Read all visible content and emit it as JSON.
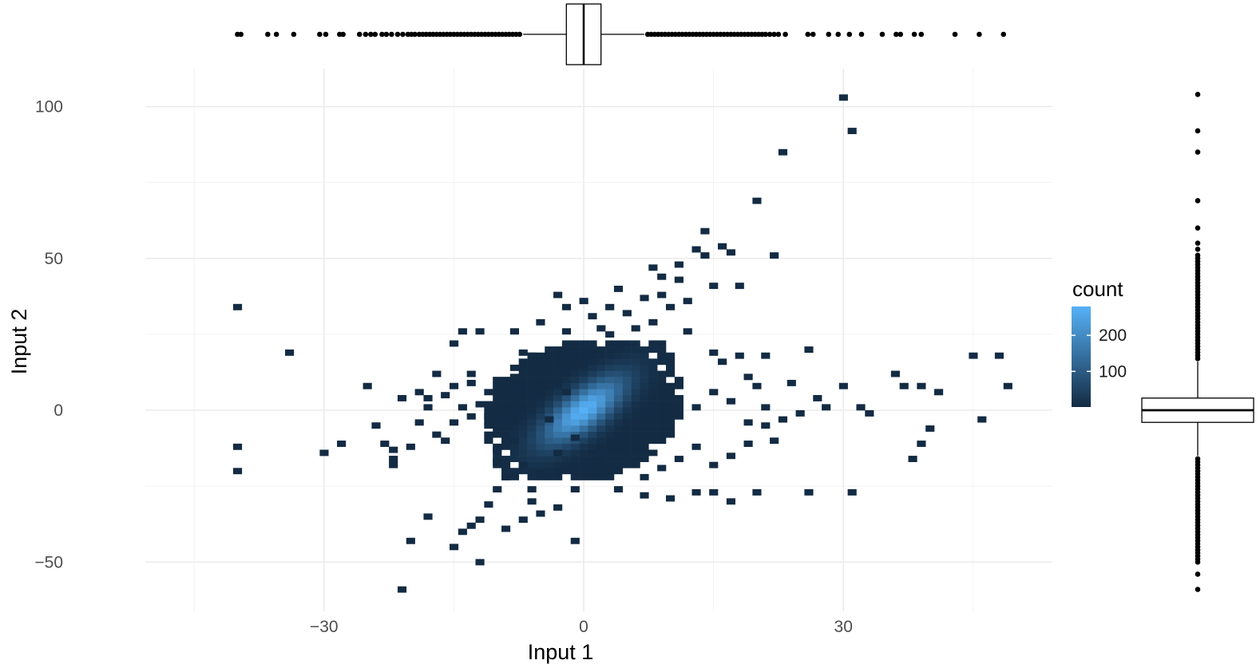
{
  "chart_data": [
    {
      "type": "heatmap",
      "title": "",
      "xlabel": "Input 1",
      "ylabel": "Input 2",
      "xlim": [
        -45,
        54
      ],
      "ylim": [
        -68,
        110
      ],
      "x_ticks": [
        -30,
        0,
        30
      ],
      "x_tick_labels": [
        "−30",
        "0",
        "30"
      ],
      "y_ticks": [
        -50,
        0,
        50,
        100
      ],
      "y_tick_labels": [
        "−50",
        "0",
        "50",
        "100"
      ],
      "grid": true,
      "bin_width": [
        1,
        2
      ],
      "legend": {
        "title": "count",
        "placement": "right",
        "range": [
          1,
          280
        ],
        "ticks": [
          100,
          200
        ],
        "tick_labels": [
          "100",
          "200"
        ],
        "low_color": "#132b43",
        "high_color": "#56b1f7"
      },
      "bins": [
        [
          -40,
          34,
          1
        ],
        [
          -40,
          -12,
          1
        ],
        [
          -40,
          -20,
          1
        ],
        [
          -34,
          19,
          1
        ],
        [
          -30,
          -14,
          1
        ],
        [
          -28,
          -11,
          1
        ],
        [
          -25,
          8,
          1
        ],
        [
          -24,
          -5,
          1
        ],
        [
          -23,
          -11,
          1
        ],
        [
          -22,
          -13,
          1
        ],
        [
          -22,
          -16,
          1
        ],
        [
          -22,
          -18,
          1
        ],
        [
          -20,
          -12,
          1
        ],
        [
          -21,
          4,
          1
        ],
        [
          -19,
          6,
          1
        ],
        [
          -18,
          1,
          1
        ],
        [
          -17,
          12,
          1
        ],
        [
          -16,
          5,
          1
        ],
        [
          -15,
          -4,
          1
        ],
        [
          -15,
          8,
          1
        ],
        [
          -14,
          1,
          1
        ],
        [
          -13,
          12,
          1
        ],
        [
          -13,
          9,
          1
        ],
        [
          -12,
          2,
          1
        ],
        [
          -11,
          6,
          1
        ],
        [
          -11,
          -2,
          1
        ],
        [
          -11,
          -5,
          1
        ],
        [
          -10,
          10,
          1
        ],
        [
          -10,
          -13,
          1
        ],
        [
          -10,
          -17,
          1
        ],
        [
          -8,
          11,
          1
        ],
        [
          -8,
          4,
          1
        ],
        [
          -8,
          -10,
          1
        ],
        [
          -7,
          -18,
          1
        ],
        [
          -6,
          -26,
          1
        ],
        [
          -6,
          -30,
          1
        ],
        [
          -5,
          29,
          1
        ],
        [
          -5,
          -21,
          1
        ],
        [
          -5,
          5,
          2
        ],
        [
          -4,
          13,
          1
        ],
        [
          -4,
          -3,
          2
        ],
        [
          -3,
          9,
          1
        ],
        [
          -3,
          -14,
          1
        ],
        [
          -2,
          26,
          1
        ],
        [
          -2,
          21,
          1
        ],
        [
          -2,
          6,
          2
        ],
        [
          -1,
          -9,
          1
        ],
        [
          -1,
          -43,
          1
        ],
        [
          -21,
          -59,
          1
        ],
        [
          -20,
          -43,
          1
        ],
        [
          -18,
          -35,
          1
        ],
        [
          -15,
          -45,
          1
        ],
        [
          -14,
          -40,
          1
        ],
        [
          -12,
          -50,
          1
        ],
        [
          -13,
          -38,
          1
        ],
        [
          -11,
          -31,
          1
        ],
        [
          -12,
          -36,
          1
        ],
        [
          -14,
          26,
          1
        ],
        [
          -12,
          26,
          1
        ],
        [
          -15,
          22,
          1
        ],
        [
          -8,
          26,
          1
        ],
        [
          -7,
          19,
          1
        ],
        [
          -6,
          18,
          1
        ],
        [
          -3,
          38,
          1
        ],
        [
          -2,
          34,
          1
        ],
        [
          0,
          36,
          1
        ],
        [
          0,
          15,
          3
        ],
        [
          1,
          31,
          1
        ],
        [
          1,
          21,
          4
        ],
        [
          2,
          27,
          1
        ],
        [
          3,
          34,
          1
        ],
        [
          3,
          25,
          4
        ],
        [
          4,
          40,
          1
        ],
        [
          4,
          20,
          6
        ],
        [
          5,
          32,
          1
        ],
        [
          6,
          27,
          3
        ],
        [
          7,
          37,
          1
        ],
        [
          8,
          29,
          2
        ],
        [
          8,
          47,
          1
        ],
        [
          9,
          44,
          1
        ],
        [
          9,
          38,
          1
        ],
        [
          10,
          34,
          1
        ],
        [
          11,
          43,
          1
        ],
        [
          11,
          48,
          1
        ],
        [
          12,
          36,
          1
        ],
        [
          12,
          26,
          2
        ],
        [
          13,
          53,
          1
        ],
        [
          14,
          59,
          1
        ],
        [
          14,
          51,
          1
        ],
        [
          15,
          41,
          1
        ],
        [
          16,
          54,
          1
        ],
        [
          17,
          52,
          1
        ],
        [
          18,
          41,
          1
        ],
        [
          18,
          18,
          1
        ],
        [
          15,
          19,
          1
        ],
        [
          16,
          16,
          1
        ],
        [
          19,
          11,
          1
        ],
        [
          21,
          18,
          1
        ],
        [
          20,
          8,
          1
        ],
        [
          22,
          51,
          1
        ],
        [
          23,
          85,
          1
        ],
        [
          20,
          69,
          1
        ],
        [
          26,
          20,
          1
        ],
        [
          24,
          9,
          1
        ],
        [
          27,
          4,
          1
        ],
        [
          28,
          1,
          1
        ],
        [
          30,
          8,
          1
        ],
        [
          32,
          1,
          1
        ],
        [
          33,
          -1,
          1
        ],
        [
          30,
          103,
          1
        ],
        [
          31,
          92,
          1
        ],
        [
          36,
          12,
          1
        ],
        [
          37,
          8,
          1
        ],
        [
          39,
          8,
          1
        ],
        [
          41,
          6,
          1
        ],
        [
          45,
          18,
          1
        ],
        [
          46,
          -3,
          1
        ],
        [
          49,
          8,
          1
        ],
        [
          48,
          18,
          1
        ],
        [
          40,
          -6,
          1
        ],
        [
          39,
          -11,
          1
        ],
        [
          38,
          -16,
          1
        ],
        [
          31,
          -27,
          1
        ],
        [
          26,
          -27,
          1
        ],
        [
          20,
          -27,
          1
        ],
        [
          17,
          -30,
          1
        ],
        [
          15,
          -27,
          1
        ],
        [
          13,
          -27,
          1
        ],
        [
          10,
          -29,
          1
        ],
        [
          7,
          -28,
          1
        ],
        [
          4,
          -26,
          1
        ],
        [
          3,
          -22,
          1
        ],
        [
          -1,
          -26,
          1
        ],
        [
          -3,
          -32,
          1
        ],
        [
          2,
          -14,
          4
        ],
        [
          5,
          -16,
          3
        ],
        [
          7,
          -22,
          2
        ],
        [
          9,
          -19,
          2
        ],
        [
          11,
          -16,
          2
        ],
        [
          13,
          -12,
          2
        ],
        [
          15,
          -18,
          1
        ],
        [
          17,
          -15,
          1
        ],
        [
          19,
          -11,
          1
        ],
        [
          21,
          -5,
          1
        ],
        [
          22,
          -10,
          1
        ],
        [
          23,
          -3,
          1
        ],
        [
          25,
          -1,
          1
        ],
        [
          21,
          1,
          1
        ],
        [
          19,
          -4,
          1
        ],
        [
          17,
          3,
          1
        ],
        [
          15,
          6,
          2
        ],
        [
          13,
          1,
          3
        ],
        [
          -19,
          -4,
          1
        ],
        [
          -17,
          -8,
          1
        ],
        [
          -16,
          -10,
          1
        ],
        [
          -18,
          4,
          1
        ],
        [
          -13,
          -2,
          1
        ],
        [
          -9,
          -22,
          1
        ],
        [
          -7,
          -36,
          2
        ],
        [
          -9,
          -39,
          1
        ],
        [
          -5,
          -34,
          1
        ],
        [
          -10,
          -26,
          1
        ]
      ]
    },
    {
      "type": "boxplot",
      "variable": "Input 1",
      "orientation": "horizontal",
      "q1": -2,
      "median": 0,
      "q3": 2,
      "whisker_low": -7,
      "whisker_high": 7,
      "outliers": [
        -40,
        -39.6,
        -36.5,
        -35.5,
        -33.5,
        -30.5,
        -29.8,
        -28.2,
        -27.8,
        -25.9,
        -25.2,
        -24.6,
        -24.1,
        -23.3,
        -22.8,
        -22.2,
        -21.5,
        -20.9,
        -20.3,
        -19.9,
        -19.5,
        -19.0,
        -18.6,
        -18.2,
        -17.8,
        -17.4,
        -17.0,
        -16.6,
        -16.2,
        -15.8,
        -15.4,
        -15.0,
        -14.6,
        -14.2,
        -13.8,
        -13.4,
        -13.0,
        -12.6,
        -12.2,
        -11.8,
        -11.4,
        -11.0,
        -10.6,
        -10.2,
        -9.8,
        -9.4,
        -9.0,
        -8.6,
        -8.2,
        -7.8,
        -7.4,
        7.4,
        7.8,
        8.2,
        8.6,
        9.0,
        9.4,
        9.8,
        10.2,
        10.6,
        11.0,
        11.4,
        11.8,
        12.2,
        12.6,
        13.0,
        13.4,
        13.8,
        14.2,
        14.6,
        15.0,
        15.4,
        15.8,
        16.2,
        16.6,
        17.0,
        17.4,
        17.8,
        18.2,
        18.6,
        19.0,
        19.4,
        19.8,
        20.2,
        20.6,
        21.0,
        21.5,
        22.0,
        22.5,
        23.3,
        25.9,
        26.5,
        28.3,
        29.4,
        30.7,
        32.1,
        34.5,
        36.1,
        36.6,
        38.2,
        39.0,
        42.9,
        45.7,
        48.5
      ]
    },
    {
      "type": "boxplot",
      "variable": "Input 2",
      "orientation": "vertical",
      "q1": -4,
      "median": 0,
      "q3": 4,
      "whisker_low": -15,
      "whisker_high": 16,
      "outliers": [
        104,
        92,
        85,
        69,
        60,
        55,
        53,
        51,
        50,
        49,
        48,
        47,
        46,
        45,
        44,
        43,
        42,
        41,
        40,
        39,
        38,
        37,
        36,
        35,
        34,
        33,
        32,
        31,
        30,
        29,
        28,
        27,
        26,
        25,
        24,
        23,
        22,
        21,
        20,
        19,
        18,
        17,
        -16,
        -17,
        -18,
        -19,
        -20,
        -21,
        -22,
        -23,
        -24,
        -25,
        -26,
        -27,
        -28,
        -29,
        -30,
        -31,
        -32,
        -33,
        -34,
        -35,
        -36,
        -37,
        -38,
        -39,
        -40,
        -41,
        -42,
        -43,
        -44,
        -45,
        -46,
        -47,
        -48,
        -49,
        -50,
        -54,
        -59
      ]
    }
  ]
}
